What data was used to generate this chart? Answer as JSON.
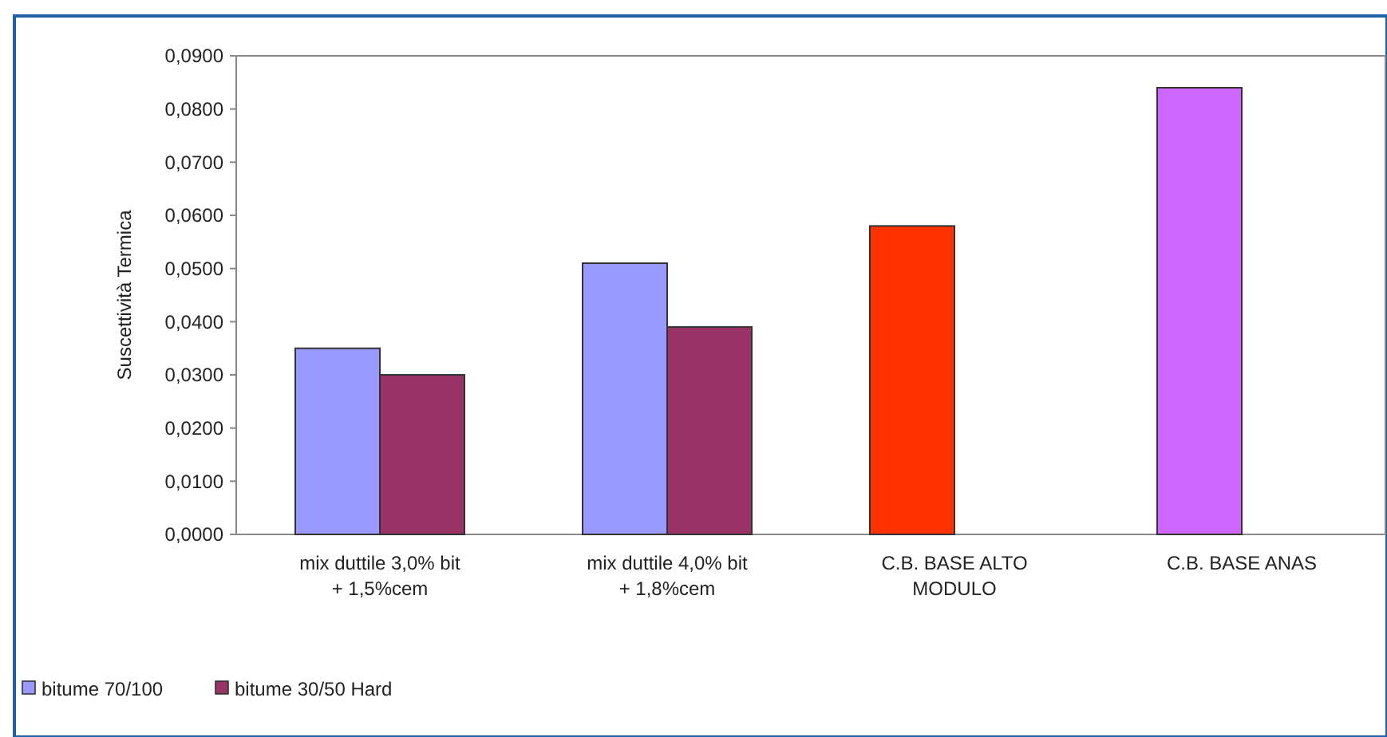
{
  "chart_data": {
    "type": "bar",
    "ylabel": "Suscettività Termica",
    "categories": [
      "mix duttile 3,0% bit\n+ 1,5%cem",
      "mix duttile 4,0% bit\n+ 1,8%cem",
      "C.B. BASE ALTO\nMODULO",
      "C.B. BASE ANAS"
    ],
    "series": [
      {
        "name": "bitume 70/100",
        "color": "#9999ff",
        "colors": [
          "#9999ff",
          "#9999ff",
          "#ff3300",
          "#cc66ff"
        ],
        "values": [
          0.035,
          0.051,
          0.058,
          0.084
        ]
      },
      {
        "name": "bitume 30/50 Hard",
        "color": "#993366",
        "values": [
          0.03,
          0.039,
          null,
          null
        ]
      }
    ],
    "ylim": [
      0,
      0.09
    ],
    "yticks": [
      {
        "value": 0,
        "label": "0,0000"
      },
      {
        "value": 0.01,
        "label": "0,0100"
      },
      {
        "value": 0.02,
        "label": "0,0200"
      },
      {
        "value": 0.03,
        "label": "0,0300"
      },
      {
        "value": 0.04,
        "label": "0,0400"
      },
      {
        "value": 0.05,
        "label": "0,0500"
      },
      {
        "value": 0.06,
        "label": "0,0600"
      },
      {
        "value": 0.07,
        "label": "0,0700"
      },
      {
        "value": 0.08,
        "label": "0,0800"
      },
      {
        "value": 0.09,
        "label": "0,0900"
      }
    ],
    "grid": false,
    "legend": "bottom left"
  }
}
